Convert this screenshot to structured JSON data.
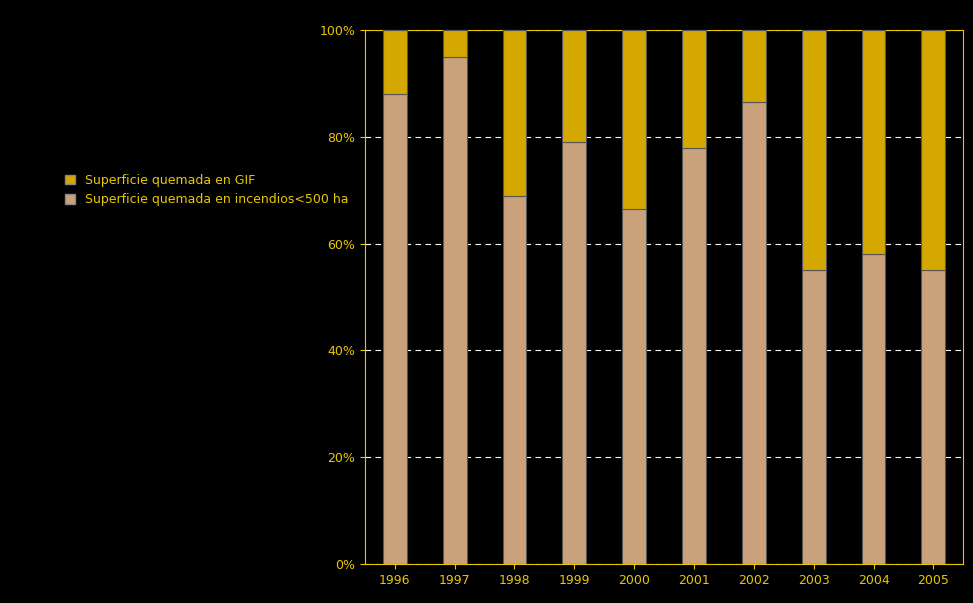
{
  "chart_data": {
    "type": "bar",
    "stacked": true,
    "categories": [
      "1996",
      "1997",
      "1998",
      "1999",
      "2000",
      "2001",
      "2002",
      "2003",
      "2004",
      "2005"
    ],
    "series": [
      {
        "name": "Superficie quemada en incendios<500 ha",
        "color": "#c9a27c",
        "values": [
          88,
          95,
          69,
          79,
          66.5,
          78,
          86.5,
          55,
          58,
          55
        ]
      },
      {
        "name": "Superficie quemada en GIF",
        "color": "#d4a800",
        "values": [
          12,
          5,
          31,
          21,
          33.5,
          22,
          13.5,
          45,
          42,
          45
        ]
      }
    ],
    "ylim": [
      0,
      100
    ],
    "yticks": [
      {
        "value": 0,
        "label": "0%"
      },
      {
        "value": 20,
        "label": "20%"
      },
      {
        "value": 40,
        "label": "40%"
      },
      {
        "value": 60,
        "label": "60%"
      },
      {
        "value": 80,
        "label": "80%"
      },
      {
        "value": 100,
        "label": "100%"
      }
    ],
    "grid": true,
    "legend": "upper left"
  }
}
